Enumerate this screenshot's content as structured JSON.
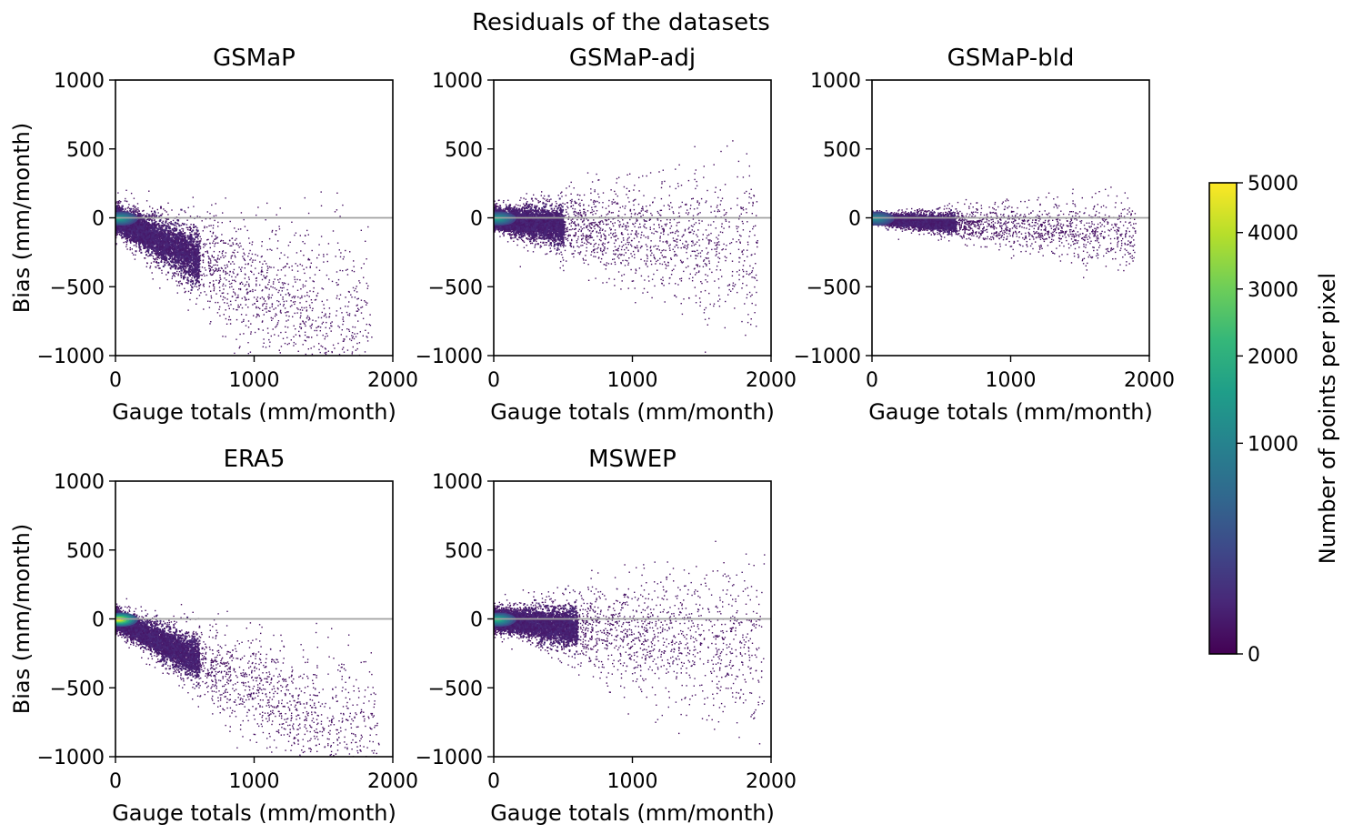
{
  "figure": {
    "title": "Residuals of the datasets"
  },
  "colorbar": {
    "label": "Number of points per pixel",
    "ticks": [
      0,
      1000,
      2000,
      3000,
      4000,
      5000
    ],
    "tick_labels": [
      "0",
      "1000",
      "2000",
      "3000",
      "4000",
      "5000"
    ],
    "colormap": [
      "#440154",
      "#482878",
      "#3e4989",
      "#31688e",
      "#26828e",
      "#1f9e89",
      "#35b779",
      "#6ece58",
      "#b5de2b",
      "#fde725"
    ]
  },
  "chart_data": [
    {
      "type": "scatter",
      "title": "GSMaP",
      "xlabel": "Gauge totals (mm/month)",
      "ylabel": "Bias (mm/month)",
      "xlim": [
        0,
        2000
      ],
      "ylim": [
        -1000,
        1000
      ],
      "xticks": [
        0,
        1000,
        2000
      ],
      "yticks": [
        1000,
        500,
        0,
        -500,
        -1000
      ],
      "xtick_labels": [
        "0",
        "1000",
        "2000"
      ],
      "ytick_labels": [
        "1000",
        "500",
        "0",
        "−500",
        "−1000"
      ],
      "reference_line_y": 0,
      "trend": {
        "slope": -0.5,
        "spread": 90,
        "dense_x_max": 600,
        "max_x": 1850
      },
      "peak_density": {
        "x": 20,
        "y": -5,
        "count": 2500
      }
    },
    {
      "type": "scatter",
      "title": "GSMaP-adj",
      "xlabel": "Gauge totals (mm/month)",
      "ylabel": "",
      "xlim": [
        0,
        2000
      ],
      "ylim": [
        -1000,
        1000
      ],
      "xticks": [
        0,
        1000,
        2000
      ],
      "yticks": [
        1000,
        500,
        0,
        -500,
        -1000
      ],
      "xtick_labels": [
        "0",
        "1000",
        "2000"
      ],
      "ytick_labels": [
        "1000",
        "500",
        "0",
        "−500",
        "−1000"
      ],
      "reference_line_y": 0,
      "trend": {
        "slope": -0.12,
        "spread": 70,
        "dense_x_max": 500,
        "max_x": 1900
      },
      "peak_density": {
        "x": 20,
        "y": -5,
        "count": 2500
      }
    },
    {
      "type": "scatter",
      "title": "GSMaP-bld",
      "xlabel": "Gauge totals (mm/month)",
      "ylabel": "",
      "xlim": [
        0,
        2000
      ],
      "ylim": [
        -1000,
        1000
      ],
      "xticks": [
        0,
        1000,
        2000
      ],
      "yticks": [
        1000,
        500,
        0,
        -500,
        -1000
      ],
      "xtick_labels": [
        "0",
        "1000",
        "2000"
      ],
      "ytick_labels": [
        "1000",
        "500",
        "0",
        "−500",
        "−1000"
      ],
      "reference_line_y": 0,
      "trend": {
        "slope": -0.06,
        "spread": 30,
        "dense_x_max": 600,
        "max_x": 1900
      },
      "peak_density": {
        "x": 20,
        "y": -5,
        "count": 2000
      }
    },
    {
      "type": "scatter",
      "title": "ERA5",
      "xlabel": "Gauge totals (mm/month)",
      "ylabel": "Bias (mm/month)",
      "xlim": [
        0,
        2000
      ],
      "ylim": [
        -1000,
        1000
      ],
      "xticks": [
        0,
        1000,
        2000
      ],
      "yticks": [
        1000,
        500,
        0,
        -500,
        -1000
      ],
      "xtick_labels": [
        "0",
        "1000",
        "2000"
      ],
      "ytick_labels": [
        "1000",
        "500",
        "0",
        "−500",
        "−1000"
      ],
      "reference_line_y": 0,
      "trend": {
        "slope": -0.5,
        "spread": 70,
        "dense_x_max": 600,
        "max_x": 1900
      },
      "peak_density": {
        "x": 20,
        "y": -5,
        "count": 5000
      }
    },
    {
      "type": "scatter",
      "title": "MSWEP",
      "xlabel": "Gauge totals (mm/month)",
      "ylabel": "",
      "xlim": [
        0,
        2000
      ],
      "ylim": [
        -1000,
        1000
      ],
      "xticks": [
        0,
        1000,
        2000
      ],
      "yticks": [
        1000,
        500,
        0,
        -500,
        -1000
      ],
      "xtick_labels": [
        "0",
        "1000",
        "2000"
      ],
      "ytick_labels": [
        "1000",
        "500",
        "0",
        "−500",
        "−1000"
      ],
      "reference_line_y": 0,
      "trend": {
        "slope": -0.1,
        "spread": 70,
        "dense_x_max": 600,
        "max_x": 1950
      },
      "peak_density": {
        "x": 20,
        "y": -5,
        "count": 3000
      }
    }
  ]
}
